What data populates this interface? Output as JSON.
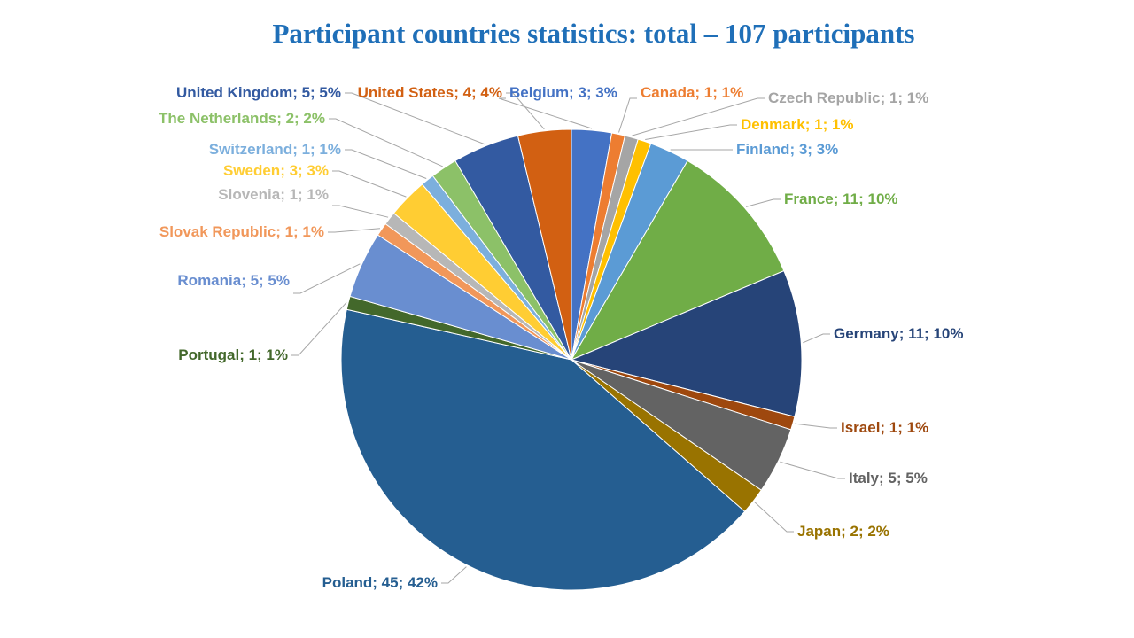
{
  "chart_data": {
    "type": "pie",
    "title": "Participant countries statistics: total – 107 participants",
    "slices": [
      {
        "label": "Belgium; 3; 3%",
        "name": "Belgium",
        "value": 3,
        "color": "#4472c4",
        "label_color": "#4472c4"
      },
      {
        "label": "Canada; 1; 1%",
        "name": "Canada",
        "value": 1,
        "color": "#ed7d31",
        "label_color": "#ed7d31"
      },
      {
        "label": "Czech Republic; 1; 1%",
        "name": "Czech Republic",
        "value": 1,
        "color": "#a5a5a5",
        "label_color": "#a5a5a5"
      },
      {
        "label": "Denmark; 1; 1%",
        "name": "Denmark",
        "value": 1,
        "color": "#ffc000",
        "label_color": "#ffc000"
      },
      {
        "label": "Finland; 3; 3%",
        "name": "Finland",
        "value": 3,
        "color": "#5b9bd5",
        "label_color": "#5b9bd5"
      },
      {
        "label": "France; 11; 10%",
        "name": "France",
        "value": 11,
        "color": "#70ad47",
        "label_color": "#70ad47"
      },
      {
        "label": "Germany; 11; 10%",
        "name": "Germany",
        "value": 11,
        "color": "#264478",
        "label_color": "#264478"
      },
      {
        "label": "Israel; 1; 1%",
        "name": "Israel",
        "value": 1,
        "color": "#9e480e",
        "label_color": "#9e480e"
      },
      {
        "label": "Italy; 5; 5%",
        "name": "Italy",
        "value": 5,
        "color": "#636363",
        "label_color": "#636363"
      },
      {
        "label": "Japan; 2; 2%",
        "name": "Japan",
        "value": 2,
        "color": "#997300",
        "label_color": "#997300"
      },
      {
        "label": "Poland; 45; 42%",
        "name": "Poland",
        "value": 45,
        "color": "#255e91",
        "label_color": "#255e91"
      },
      {
        "label": "Portugal; 1; 1%",
        "name": "Portugal",
        "value": 1,
        "color": "#43682b",
        "label_color": "#43682b"
      },
      {
        "label": "Romania; 5; 5%",
        "name": "Romania",
        "value": 5,
        "color": "#698ed0",
        "label_color": "#698ed0"
      },
      {
        "label": "Slovak Republic; 1; 1%",
        "name": "Slovak Republic",
        "value": 1,
        "color": "#f1975a",
        "label_color": "#f1975a"
      },
      {
        "label": "Slovenia; 1; 1%",
        "name": "Slovenia",
        "value": 1,
        "color": "#b7b7b7",
        "label_color": "#b7b7b7"
      },
      {
        "label": "Sweden; 3; 3%",
        "name": "Sweden",
        "value": 3,
        "color": "#ffcd33",
        "label_color": "#ffcd33"
      },
      {
        "label": "Switzerland; 1; 1%",
        "name": "Switzerland",
        "value": 1,
        "color": "#7cafdd",
        "label_color": "#7cafdd"
      },
      {
        "label": "The Netherlands; 2; 2%",
        "name": "The Netherlands",
        "value": 2,
        "color": "#8cc168",
        "label_color": "#8cc168"
      },
      {
        "label": "United Kingdom; 5; 5%",
        "name": "United Kingdom",
        "value": 5,
        "color": "#335aa1",
        "label_color": "#335aa1"
      },
      {
        "label": "United States; 4; 4%",
        "name": "United States",
        "value": 4,
        "color": "#d26012",
        "label_color": "#d26012"
      }
    ],
    "start": "top, clockwise",
    "legend": "none (data labels with leader lines)"
  }
}
